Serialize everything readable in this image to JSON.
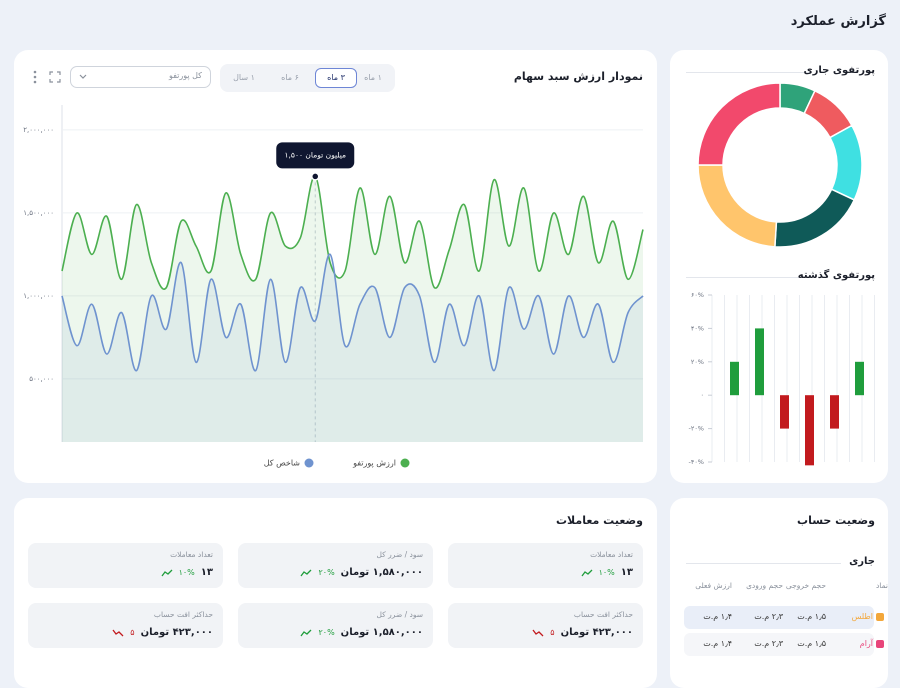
{
  "header": {
    "title": "گزارش عملکرد"
  },
  "controls": {
    "periods": [
      "۱ ماه",
      "۳ ماه",
      "۶ ماه",
      "۱ سال"
    ],
    "filter": "کل پورتفو"
  },
  "chart_data": [
    {
      "type": "line",
      "title": "نمودار ارزش سبد سهام",
      "annotation": "۱,۵۰۰ میلیون تومان",
      "categories": [
        null,
        null,
        null,
        null,
        null,
        null,
        null,
        null,
        null,
        null,
        null,
        null,
        null,
        null,
        null,
        null,
        null,
        null,
        null,
        null,
        null,
        null,
        null,
        null,
        null,
        null,
        null,
        null,
        null,
        null,
        null,
        null,
        null,
        null,
        null,
        null,
        null,
        null,
        null,
        null
      ],
      "series": [
        {
          "name": "ارزش پورتفو",
          "color": "#4caf50",
          "values": [
            1150000,
            1500000,
            1250000,
            1480000,
            1100000,
            1550000,
            1200000,
            1050000,
            1450000,
            1300000,
            1150000,
            1620000,
            1250000,
            1100000,
            1500000,
            1300000,
            1350000,
            1720000,
            1200000,
            1150000,
            1650000,
            1250000,
            1600000,
            1200000,
            1450000,
            1050000,
            1280000,
            1550000,
            1150000,
            1700000,
            1300000,
            1650000,
            1150000,
            1500000,
            1250000,
            1600000,
            1200000,
            1450000,
            1100000,
            1400000
          ]
        },
        {
          "name": "شاخص کل",
          "color": "#6f93cf",
          "values": [
            1000000,
            700000,
            950000,
            650000,
            900000,
            550000,
            1000000,
            800000,
            1200000,
            600000,
            1100000,
            750000,
            950000,
            550000,
            1100000,
            600000,
            1050000,
            850000,
            1250000,
            700000,
            950000,
            1050000,
            750000,
            1050000,
            1000000,
            600000,
            950000,
            700000,
            1000000,
            550000,
            1050000,
            800000,
            1000000,
            650000,
            1000000,
            750000,
            950000,
            600000,
            900000,
            1000000
          ]
        }
      ],
      "ylim": [
        120000,
        2150000
      ],
      "yticks": [
        {
          "value": 500000,
          "label": "۵۰۰,۰۰۰"
        },
        {
          "value": 1000000,
          "label": "۱,۰۰۰,۰۰۰"
        },
        {
          "value": 1500000,
          "label": "۱,۵۰۰,۰۰۰"
        },
        {
          "value": 2000000,
          "label": "۲,۰۰۰,۰۰۰"
        }
      ],
      "grid": true
    },
    {
      "type": "pie",
      "title": "پورتفوی جاری",
      "values": [
        7,
        10,
        15,
        19,
        24,
        25
      ],
      "colors": [
        "#2fa37a",
        "#ef5b5f",
        "#3fe0e2",
        "#0f5a58",
        "#ffc56c",
        "#f2496c"
      ]
    },
    {
      "type": "bar",
      "title": "پورتفوی گذشته",
      "categories": [
        null,
        null,
        null,
        null,
        null,
        null
      ],
      "values": [
        20,
        40,
        -20,
        -42,
        -20,
        20
      ],
      "colors": [
        "#1f9d3c",
        "#1f9d3c",
        "#c21a1e",
        "#c21a1e",
        "#c21a1e",
        "#1f9d3c"
      ],
      "ylim": [
        -40,
        60
      ],
      "yticks": [
        {
          "value": 60,
          "label": "۶۰%"
        },
        {
          "value": 40,
          "label": "۴۰%"
        },
        {
          "value": 20,
          "label": "۲۰%"
        },
        {
          "value": 0,
          "label": "۰"
        },
        {
          "value": -20,
          "label": "-۲۰%"
        },
        {
          "value": -40,
          "label": "-۴۰%"
        }
      ],
      "grid": true
    }
  ],
  "trades": {
    "title": "وضعیت معاملات",
    "cards": [
      {
        "label": "تعداد معاملات",
        "value": "۱۳",
        "change": "۱۰%",
        "trend": "up"
      },
      {
        "label": "سود / ضرر کل",
        "value": "۱,۵۸۰,۰۰۰ تومان",
        "change": "۲۰%",
        "trend": "up"
      },
      {
        "label": "تعداد معاملات",
        "value": "۱۳",
        "change": "۱۰%",
        "trend": "up"
      },
      {
        "label": "حداکثر افت حساب",
        "value": "۴۲۳,۰۰۰ تومان",
        "change": "۵",
        "trend": "down"
      },
      {
        "label": "سود / ضرر کل",
        "value": "۱,۵۸۰,۰۰۰ تومان",
        "change": "۲۰%",
        "trend": "up"
      },
      {
        "label": "حداکثر افت حساب",
        "value": "۴۲۳,۰۰۰ تومان",
        "change": "۵",
        "trend": "down"
      }
    ]
  },
  "account": {
    "title": "وضعیت حساب",
    "section": "جاری",
    "columns": [
      "نماد",
      "حجم خروجی",
      "حجم ورودی",
      "ارزش فعلی"
    ],
    "rows": [
      {
        "symbol": "اطلس",
        "color": "#f3a73a",
        "cells": [
          "۱٫۵ م.ت",
          "۲٫۳ م.ت",
          "۱٫۴ م.ت"
        ]
      },
      {
        "symbol": "آرام",
        "color": "#e8457a",
        "cells": [
          "۱٫۵ م.ت",
          "۲٫۳ م.ت",
          "۱٫۴ م.ت"
        ]
      }
    ]
  }
}
